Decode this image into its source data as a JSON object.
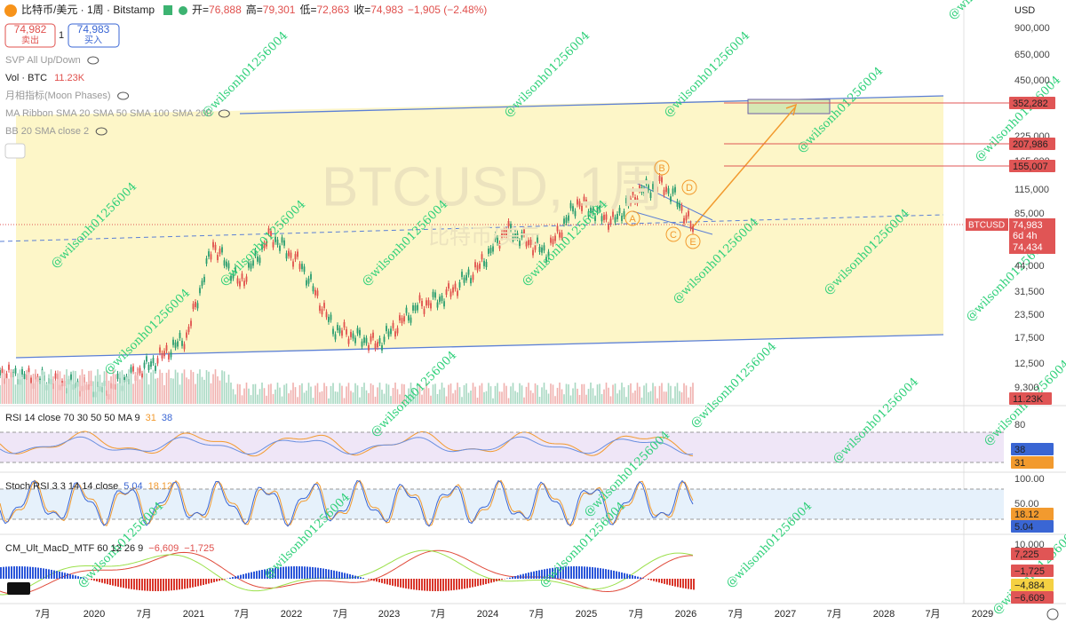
{
  "header": {
    "symbol": "比特币/美元 · 1周 · Bitstamp",
    "ohlc": [
      {
        "label": "开=",
        "value": "76,888"
      },
      {
        "label": "高=",
        "value": "79,301"
      },
      {
        "label": "低=",
        "value": "72,863"
      },
      {
        "label": "收=",
        "value": "74,983"
      }
    ],
    "change": "−1,905 (−2.48%)"
  },
  "trade": {
    "sell_price": "74,982",
    "sell_label": "卖出",
    "quantity": "1",
    "buy_price": "74,983",
    "buy_label": "买入"
  },
  "indicators": [
    {
      "name": "SVP All Up/Down"
    },
    {
      "name": "Vol · BTC",
      "value": "11.23K"
    },
    {
      "name": "月相指标(Moon Phases)"
    },
    {
      "name": "MA Ribbon SMA 20 SMA 50 SMA 100 SMA 200"
    },
    {
      "name": "BB 20 SMA close 2"
    }
  ],
  "watermark": {
    "symbol": "BTCUSD, 1周",
    "name": "比特币/美元"
  },
  "waves": [
    "A",
    "B",
    "C",
    "D",
    "E"
  ],
  "price_axis": {
    "currency": "USD",
    "ticks": [
      "900,000",
      "650,000",
      "450,000",
      "225,000",
      "165,000",
      "115,000",
      "85,000",
      "44,000",
      "31,500",
      "23,500",
      "17,500",
      "12,500",
      "9,300"
    ],
    "levels": [
      "352,282",
      "207,986",
      "155,007"
    ],
    "current": {
      "symbol": "BTCUSD",
      "price": "74,983",
      "countdown": "6d 4h",
      "low": "74,434"
    },
    "volume": "11.23K"
  },
  "rsi": {
    "title": "RSI 14 close 70 30 50 50 MA 9",
    "values": [
      "31",
      "38"
    ],
    "axis": [
      "80",
      "38",
      "31"
    ]
  },
  "stoch_rsi": {
    "title": "Stoch RSI 3 3 14 14 close",
    "values": [
      "5.04",
      "18.12"
    ],
    "axis": [
      "100.00",
      "50.00",
      "18.12",
      "5.04"
    ]
  },
  "macd": {
    "title": "CM_Ult_MacD_MTF 60 12 26 9",
    "values": [
      "−6,609",
      "−1,725"
    ],
    "axis": [
      "10,000",
      "7,225",
      "−1,725",
      "−4,884",
      "−6,609"
    ]
  },
  "time_axis": [
    "7月",
    "2020",
    "7月",
    "2021",
    "7月",
    "2022",
    "7月",
    "2023",
    "7月",
    "2024",
    "7月",
    "2025",
    "7月",
    "2026",
    "7月",
    "2027",
    "7月",
    "2028",
    "7月",
    "2029"
  ],
  "user_tag": "@wilsonh01256004"
}
